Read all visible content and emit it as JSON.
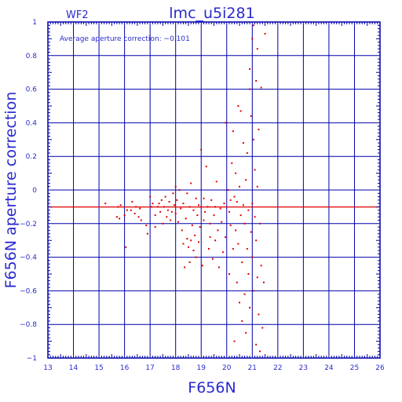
{
  "chart_data": {
    "type": "scatter",
    "title": "lmc_u5i281",
    "panel_label": "WF2",
    "xlabel": "F656N",
    "ylabel": "F656N aperture correction",
    "annotation": "Average aperture correction: −0.101",
    "average_line": -0.101,
    "xlim": [
      13,
      26
    ],
    "ylim": [
      -1,
      1
    ],
    "x_ticks": [
      13,
      14,
      15,
      16,
      17,
      18,
      19,
      20,
      21,
      22,
      23,
      24,
      25,
      26
    ],
    "y_ticks": [
      -1,
      -0.8,
      -0.6,
      -0.4,
      -0.2,
      0,
      0.2,
      0.4,
      0.6,
      0.8,
      1
    ],
    "x_tick_labels": [
      "13",
      "14",
      "15",
      "16",
      "17",
      "18",
      "19",
      "20",
      "21",
      "22",
      "23",
      "24",
      "25",
      "26"
    ],
    "y_tick_labels": [
      "−1",
      "−0.8",
      "−0.6",
      "−0.4",
      "−0.2",
      "0",
      "0.2",
      "0.4",
      "0.6",
      "0.8",
      "1"
    ],
    "grid": true,
    "colors": {
      "axes": "#0000aa",
      "grid": "#0000aa",
      "text": "#2a2ad0",
      "points": "#e00000",
      "average_line": "#e00000"
    },
    "points": [
      [
        15.25,
        -0.08
      ],
      [
        15.7,
        -0.16
      ],
      [
        15.75,
        -0.1
      ],
      [
        15.8,
        -0.17
      ],
      [
        15.85,
        -0.09
      ],
      [
        16.0,
        -0.15
      ],
      [
        16.1,
        -0.12
      ],
      [
        16.05,
        -0.34
      ],
      [
        16.25,
        -0.12
      ],
      [
        16.3,
        -0.07
      ],
      [
        16.4,
        -0.14
      ],
      [
        16.45,
        -0.1
      ],
      [
        16.55,
        -0.16
      ],
      [
        16.65,
        -0.18
      ],
      [
        16.6,
        -0.11
      ],
      [
        16.85,
        -0.21
      ],
      [
        16.9,
        -0.26
      ],
      [
        17.0,
        -0.04
      ],
      [
        17.05,
        -0.1
      ],
      [
        17.1,
        -0.08
      ],
      [
        17.2,
        -0.22
      ],
      [
        17.2,
        -0.15
      ],
      [
        17.3,
        -0.1
      ],
      [
        17.35,
        -0.08
      ],
      [
        17.4,
        -0.13
      ],
      [
        17.45,
        -0.06
      ],
      [
        17.5,
        -0.2
      ],
      [
        17.55,
        -0.1
      ],
      [
        17.6,
        -0.04
      ],
      [
        17.65,
        -0.16
      ],
      [
        17.7,
        -0.12
      ],
      [
        17.75,
        -0.07
      ],
      [
        17.8,
        -0.18
      ],
      [
        17.85,
        -0.13
      ],
      [
        17.9,
        -0.02
      ],
      [
        17.95,
        -0.09
      ],
      [
        18.0,
        0.02
      ],
      [
        18.0,
        -0.14
      ],
      [
        18.05,
        -0.06
      ],
      [
        18.1,
        -0.19
      ],
      [
        18.15,
        0.0
      ],
      [
        18.2,
        -0.11
      ],
      [
        18.25,
        -0.24
      ],
      [
        18.3,
        -0.32
      ],
      [
        18.3,
        -0.08
      ],
      [
        18.35,
        -0.46
      ],
      [
        18.4,
        -0.17
      ],
      [
        18.45,
        -0.29
      ],
      [
        18.45,
        -0.02
      ],
      [
        18.5,
        -0.34
      ],
      [
        18.55,
        -0.1
      ],
      [
        18.55,
        -0.43
      ],
      [
        18.6,
        -0.3
      ],
      [
        18.6,
        0.04
      ],
      [
        18.65,
        -0.21
      ],
      [
        18.7,
        -0.12
      ],
      [
        18.7,
        -0.36
      ],
      [
        18.75,
        -0.27
      ],
      [
        18.8,
        -0.05
      ],
      [
        18.8,
        -0.4
      ],
      [
        18.85,
        -0.15
      ],
      [
        18.9,
        -0.09
      ],
      [
        18.9,
        -0.31
      ],
      [
        18.95,
        -0.22
      ],
      [
        19.0,
        -0.1
      ],
      [
        19.0,
        0.24
      ],
      [
        19.05,
        -0.45
      ],
      [
        19.1,
        -0.18
      ],
      [
        19.1,
        -0.05
      ],
      [
        19.15,
        -0.13
      ],
      [
        19.2,
        0.14
      ],
      [
        19.25,
        -0.1
      ],
      [
        19.3,
        -0.35
      ],
      [
        19.35,
        -0.28
      ],
      [
        19.35,
        -0.2
      ],
      [
        19.4,
        -0.06
      ],
      [
        19.45,
        -0.41
      ],
      [
        19.5,
        -0.15
      ],
      [
        19.55,
        -0.3
      ],
      [
        19.55,
        -0.1
      ],
      [
        19.6,
        0.05
      ],
      [
        19.65,
        -0.24
      ],
      [
        19.7,
        -0.46
      ],
      [
        19.75,
        -0.11
      ],
      [
        19.8,
        -0.19
      ],
      [
        19.85,
        -0.37
      ],
      [
        19.9,
        -0.08
      ],
      [
        19.95,
        0.4
      ],
      [
        19.95,
        -0.28
      ],
      [
        20.05,
        0.0
      ],
      [
        20.1,
        -0.5
      ],
      [
        20.1,
        -0.13
      ],
      [
        20.15,
        -0.21
      ],
      [
        20.15,
        -0.06
      ],
      [
        20.2,
        0.16
      ],
      [
        20.25,
        -0.35
      ],
      [
        20.25,
        0.35
      ],
      [
        20.3,
        -0.04
      ],
      [
        20.3,
        -0.9
      ],
      [
        20.35,
        -0.24
      ],
      [
        20.35,
        0.1
      ],
      [
        20.4,
        -0.55
      ],
      [
        20.4,
        -0.07
      ],
      [
        20.45,
        0.5
      ],
      [
        20.45,
        -0.32
      ],
      [
        20.5,
        -0.67
      ],
      [
        20.5,
        0.02
      ],
      [
        20.55,
        -0.15
      ],
      [
        20.55,
        0.47
      ],
      [
        20.6,
        -0.43
      ],
      [
        20.6,
        -0.78
      ],
      [
        20.65,
        -0.09
      ],
      [
        20.65,
        0.28
      ],
      [
        20.7,
        -0.62
      ],
      [
        20.7,
        -0.2
      ],
      [
        20.75,
        0.06
      ],
      [
        20.75,
        -0.85
      ],
      [
        20.8,
        -0.35
      ],
      [
        20.8,
        0.22
      ],
      [
        20.85,
        -0.5
      ],
      [
        20.85,
        -0.12
      ],
      [
        20.9,
        0.72
      ],
      [
        20.9,
        -0.7
      ],
      [
        20.9,
        0.6
      ],
      [
        20.95,
        -0.25
      ],
      [
        20.95,
        0.44
      ],
      [
        21.0,
        0.9
      ],
      [
        21.0,
        -0.4
      ],
      [
        21.0,
        -0.08
      ],
      [
        21.05,
        0.3
      ],
      [
        21.05,
        -0.6
      ],
      [
        21.05,
        0.98
      ],
      [
        21.1,
        -0.16
      ],
      [
        21.1,
        0.12
      ],
      [
        21.15,
        -0.92
      ],
      [
        21.15,
        0.65
      ],
      [
        21.15,
        -0.3
      ],
      [
        21.2,
        0.84
      ],
      [
        21.2,
        -0.52
      ],
      [
        21.2,
        0.02
      ],
      [
        21.25,
        -0.74
      ],
      [
        21.25,
        0.36
      ],
      [
        21.3,
        -0.2
      ],
      [
        21.3,
        -0.96
      ],
      [
        21.35,
        -0.45
      ],
      [
        21.35,
        0.61
      ],
      [
        21.4,
        -0.82
      ],
      [
        21.45,
        -0.55
      ],
      [
        21.5,
        0.93
      ]
    ]
  }
}
